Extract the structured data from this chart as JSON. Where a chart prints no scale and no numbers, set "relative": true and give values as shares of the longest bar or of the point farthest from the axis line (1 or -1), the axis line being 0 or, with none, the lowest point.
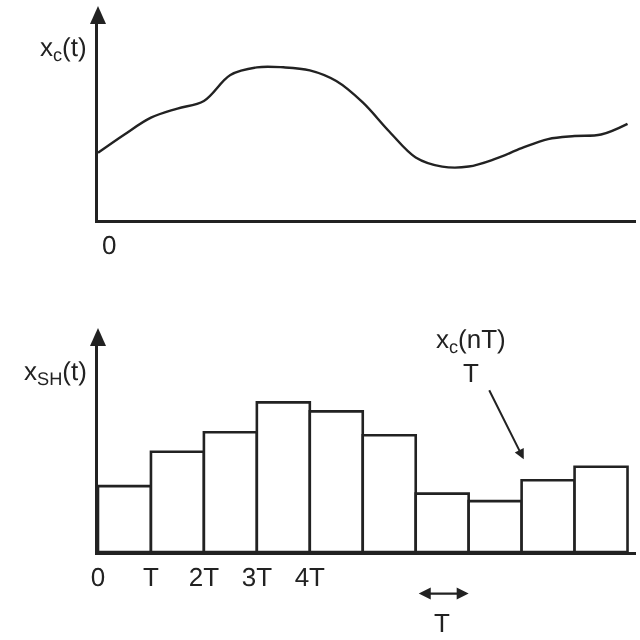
{
  "chart_data": [
    {
      "type": "line",
      "relative": true,
      "ylabel": "x$_{c}$(t)",
      "color": "#222222",
      "grid": false,
      "legend": false,
      "categories": [
        null,
        null,
        null,
        null,
        null,
        null,
        null,
        null,
        null,
        null,
        null,
        null,
        null,
        null,
        null,
        null,
        null,
        null,
        null,
        null,
        null
      ],
      "values": [
        0.44,
        0.56,
        0.67,
        0.73,
        0.78,
        0.95,
        1,
        1,
        0.98,
        0.91,
        0.77,
        0.58,
        0.41,
        0.35,
        0.35,
        0.4,
        0.47,
        0.53,
        0.55,
        0.56,
        0.63
      ],
      "annotations": [
        "0"
      ]
    },
    {
      "type": "bar",
      "relative": true,
      "ylabel": "x$_{SH}$(t)",
      "color": "#ffffff",
      "xlim": [
        0,
        10.16
      ],
      "grid": false,
      "legend": false,
      "xticks": [
        {
          "value": 0,
          "label": "0"
        },
        {
          "value": 1,
          "label": "T"
        },
        {
          "value": 2,
          "label": "2T"
        },
        {
          "value": 3,
          "label": "3T"
        },
        {
          "value": 4,
          "label": "4T"
        }
      ],
      "x": [
        0.5,
        1.5,
        2.5,
        3.5,
        4.5,
        5.5,
        6.5,
        7.5,
        8.5,
        9.5
      ],
      "values": [
        0.44,
        0.67,
        0.8,
        1,
        0.94,
        0.78,
        0.39,
        0.34,
        0.48,
        0.57
      ],
      "annotations": [
        "x$_{c}$(nT)\nT",
        "T"
      ]
    }
  ]
}
